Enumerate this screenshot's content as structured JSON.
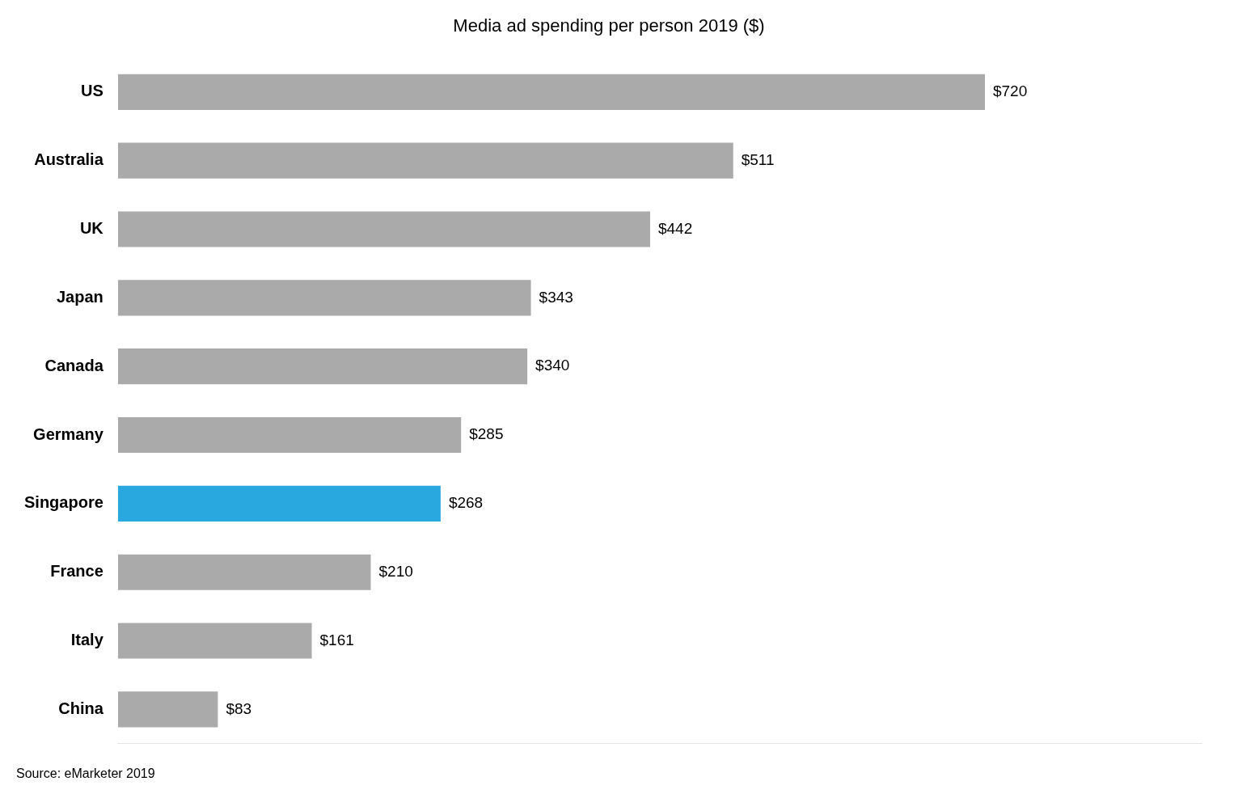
{
  "chart_data": {
    "type": "bar",
    "orientation": "horizontal",
    "title": "Media ad spending per person 2019 ($)",
    "annotations": [
      "Source: eMarketer 2019"
    ],
    "categories": [
      "US",
      "Australia",
      "UK",
      "Japan",
      "Canada",
      "Germany",
      "Singapore",
      "France",
      "Italy",
      "China"
    ],
    "values": [
      720,
      511,
      442,
      343,
      340,
      285,
      268,
      210,
      161,
      83
    ],
    "value_labels": [
      "$720",
      "$511",
      "$442",
      "$343",
      "$340",
      "$285",
      "$268",
      "$210",
      "$161",
      "$83"
    ],
    "colors": [
      "#aaaaaa",
      "#aaaaaa",
      "#aaaaaa",
      "#aaaaaa",
      "#aaaaaa",
      "#aaaaaa",
      "#29a8e0",
      "#aaaaaa",
      "#aaaaaa",
      "#aaaaaa"
    ],
    "xlim": [
      0,
      900
    ],
    "grid": false,
    "data_labels": true,
    "tick_labels": "y"
  }
}
